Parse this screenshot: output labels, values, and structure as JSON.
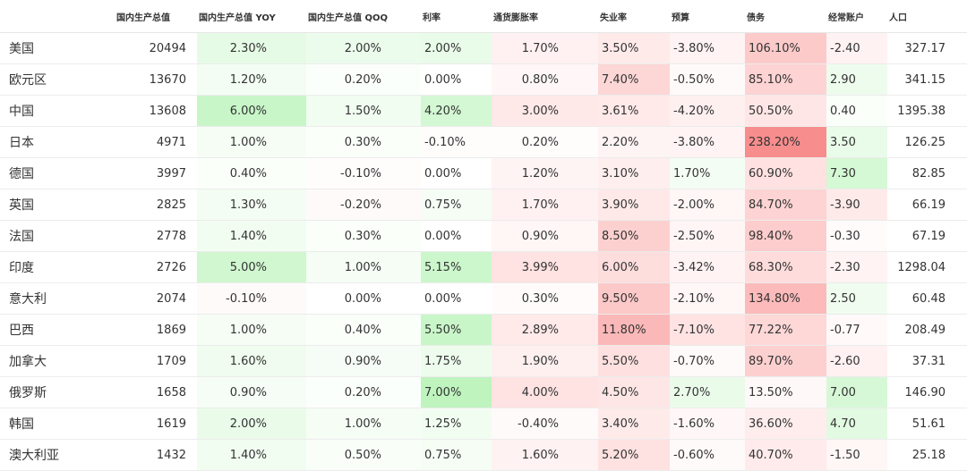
{
  "table": {
    "headers": [
      "",
      "国内生产总值",
      "国内生产总值 YOY",
      "国内生产总值 QOQ",
      "利率",
      "通货膨胀率",
      "失业率",
      "预算",
      "债务",
      "经常账户",
      "人口"
    ],
    "rows": [
      {
        "country": "美国",
        "cells": [
          {
            "text": "20494",
            "bg": ""
          },
          {
            "text": "2.30%",
            "bg": "#e6fbe6"
          },
          {
            "text": "2.00%",
            "bg": "#ecfcec"
          },
          {
            "text": "2.00%",
            "bg": "#e9fbe9"
          },
          {
            "text": "1.70%",
            "bg": "#fff1f1"
          },
          {
            "text": "3.50%",
            "bg": "#ffeaea"
          },
          {
            "text": "-3.80%",
            "bg": "#fff3f3"
          },
          {
            "text": "106.10%",
            "bg": "#fdcaca"
          },
          {
            "text": "-2.40",
            "bg": "#fff2f2"
          },
          {
            "text": "327.17",
            "bg": ""
          }
        ]
      },
      {
        "country": "欧元区",
        "cells": [
          {
            "text": "13670",
            "bg": ""
          },
          {
            "text": "1.20%",
            "bg": "#f3fdf3"
          },
          {
            "text": "0.20%",
            "bg": "#fbfffb"
          },
          {
            "text": "0.00%",
            "bg": ""
          },
          {
            "text": "0.80%",
            "bg": "#fff7f7"
          },
          {
            "text": "7.40%",
            "bg": "#fdd6d6"
          },
          {
            "text": "-0.50%",
            "bg": "#fffafa"
          },
          {
            "text": "85.10%",
            "bg": "#fdd3d3"
          },
          {
            "text": "2.90",
            "bg": "#eefcee"
          },
          {
            "text": "341.15",
            "bg": ""
          }
        ]
      },
      {
        "country": "中国",
        "cells": [
          {
            "text": "13608",
            "bg": ""
          },
          {
            "text": "6.00%",
            "bg": "#c8f6c8"
          },
          {
            "text": "1.50%",
            "bg": "#f1fdf1"
          },
          {
            "text": "4.20%",
            "bg": "#d3f8d3"
          },
          {
            "text": "3.00%",
            "bg": "#ffe8e8"
          },
          {
            "text": "3.61%",
            "bg": "#ffe9e9"
          },
          {
            "text": "-4.20%",
            "bg": "#fff0f0"
          },
          {
            "text": "50.50%",
            "bg": "#ffe6e6"
          },
          {
            "text": "0.40",
            "bg": "#fafffa"
          },
          {
            "text": "1395.38",
            "bg": ""
          }
        ]
      },
      {
        "country": "日本",
        "cells": [
          {
            "text": "4971",
            "bg": ""
          },
          {
            "text": "1.00%",
            "bg": "#f5fdf5"
          },
          {
            "text": "0.30%",
            "bg": "#fafffa"
          },
          {
            "text": "-0.10%",
            "bg": "#fffcfc"
          },
          {
            "text": "0.20%",
            "bg": "#fffcfc"
          },
          {
            "text": "2.20%",
            "bg": "#fff4f4"
          },
          {
            "text": "-3.80%",
            "bg": "#fff3f3"
          },
          {
            "text": "238.20%",
            "bg": "#f88d8d"
          },
          {
            "text": "3.50",
            "bg": "#e9fbe9"
          },
          {
            "text": "126.25",
            "bg": ""
          }
        ]
      },
      {
        "country": "德国",
        "cells": [
          {
            "text": "3997",
            "bg": ""
          },
          {
            "text": "0.40%",
            "bg": "#fafffa"
          },
          {
            "text": "-0.10%",
            "bg": "#fffcfc"
          },
          {
            "text": "0.00%",
            "bg": ""
          },
          {
            "text": "1.20%",
            "bg": "#fff4f4"
          },
          {
            "text": "3.10%",
            "bg": "#ffeeee"
          },
          {
            "text": "1.70%",
            "bg": "#f4fdf4"
          },
          {
            "text": "60.90%",
            "bg": "#ffe1e1"
          },
          {
            "text": "7.30",
            "bg": "#d5f8d5"
          },
          {
            "text": "82.85",
            "bg": ""
          }
        ]
      },
      {
        "country": "英国",
        "cells": [
          {
            "text": "2825",
            "bg": ""
          },
          {
            "text": "1.30%",
            "bg": "#f3fdf3"
          },
          {
            "text": "-0.20%",
            "bg": "#fffafa"
          },
          {
            "text": "0.75%",
            "bg": "#f5fdf5"
          },
          {
            "text": "1.70%",
            "bg": "#fff1f1"
          },
          {
            "text": "3.90%",
            "bg": "#ffe8e8"
          },
          {
            "text": "-2.00%",
            "bg": "#fff6f6"
          },
          {
            "text": "84.70%",
            "bg": "#fdd3d3"
          },
          {
            "text": "-3.90",
            "bg": "#ffeaea"
          },
          {
            "text": "66.19",
            "bg": ""
          }
        ]
      },
      {
        "country": "法国",
        "cells": [
          {
            "text": "2778",
            "bg": ""
          },
          {
            "text": "1.40%",
            "bg": "#f2fdf2"
          },
          {
            "text": "0.30%",
            "bg": "#fafffa"
          },
          {
            "text": "0.00%",
            "bg": ""
          },
          {
            "text": "0.90%",
            "bg": "#fff6f6"
          },
          {
            "text": "8.50%",
            "bg": "#fdd0d0"
          },
          {
            "text": "-2.50%",
            "bg": "#fff5f5"
          },
          {
            "text": "98.40%",
            "bg": "#fdcccc"
          },
          {
            "text": "-0.30",
            "bg": "#fffbfb"
          },
          {
            "text": "67.19",
            "bg": ""
          }
        ]
      },
      {
        "country": "印度",
        "cells": [
          {
            "text": "2726",
            "bg": ""
          },
          {
            "text": "5.00%",
            "bg": "#d0f7d0"
          },
          {
            "text": "1.00%",
            "bg": "#f5fdf5"
          },
          {
            "text": "5.15%",
            "bg": "#ccf7cc"
          },
          {
            "text": "3.99%",
            "bg": "#ffe2e2"
          },
          {
            "text": "6.00%",
            "bg": "#fedddd"
          },
          {
            "text": "-3.42%",
            "bg": "#fff3f3"
          },
          {
            "text": "68.30%",
            "bg": "#ffdcdc"
          },
          {
            "text": "-2.30",
            "bg": "#fff3f3"
          },
          {
            "text": "1298.04",
            "bg": ""
          }
        ]
      },
      {
        "country": "意大利",
        "cells": [
          {
            "text": "2074",
            "bg": ""
          },
          {
            "text": "-0.10%",
            "bg": "#fffafa"
          },
          {
            "text": "0.00%",
            "bg": ""
          },
          {
            "text": "0.00%",
            "bg": ""
          },
          {
            "text": "0.30%",
            "bg": "#fffbfb"
          },
          {
            "text": "9.50%",
            "bg": "#fcc8c8"
          },
          {
            "text": "-2.10%",
            "bg": "#fff6f6"
          },
          {
            "text": "134.80%",
            "bg": "#fcbaba"
          },
          {
            "text": "2.50",
            "bg": "#f0fcf0"
          },
          {
            "text": "60.48",
            "bg": ""
          }
        ]
      },
      {
        "country": "巴西",
        "cells": [
          {
            "text": "1869",
            "bg": ""
          },
          {
            "text": "1.00%",
            "bg": "#f5fdf5"
          },
          {
            "text": "0.40%",
            "bg": "#fafffa"
          },
          {
            "text": "5.50%",
            "bg": "#c9f6c9"
          },
          {
            "text": "2.89%",
            "bg": "#ffe9e9"
          },
          {
            "text": "11.80%",
            "bg": "#fab8b8"
          },
          {
            "text": "-7.10%",
            "bg": "#ffe3e3"
          },
          {
            "text": "77.22%",
            "bg": "#fed7d7"
          },
          {
            "text": "-0.77",
            "bg": "#fff9f9"
          },
          {
            "text": "208.49",
            "bg": ""
          }
        ]
      },
      {
        "country": "加拿大",
        "cells": [
          {
            "text": "1709",
            "bg": ""
          },
          {
            "text": "1.60%",
            "bg": "#effcef"
          },
          {
            "text": "0.90%",
            "bg": "#f6fdf6"
          },
          {
            "text": "1.75%",
            "bg": "#eefcee"
          },
          {
            "text": "1.90%",
            "bg": "#fff0f0"
          },
          {
            "text": "5.50%",
            "bg": "#fee0e0"
          },
          {
            "text": "-0.70%",
            "bg": "#fffafa"
          },
          {
            "text": "89.70%",
            "bg": "#fdd0d0"
          },
          {
            "text": "-2.60",
            "bg": "#fff1f1"
          },
          {
            "text": "37.31",
            "bg": ""
          }
        ]
      },
      {
        "country": "俄罗斯",
        "cells": [
          {
            "text": "1658",
            "bg": ""
          },
          {
            "text": "0.90%",
            "bg": "#f6fdf6"
          },
          {
            "text": "0.20%",
            "bg": "#fbfffb"
          },
          {
            "text": "7.00%",
            "bg": "#bff4bf"
          },
          {
            "text": "4.00%",
            "bg": "#ffe2e2"
          },
          {
            "text": "4.50%",
            "bg": "#ffe6e6"
          },
          {
            "text": "2.70%",
            "bg": "#eafbea"
          },
          {
            "text": "13.50%",
            "bg": "#fff8f8"
          },
          {
            "text": "7.00",
            "bg": "#d7f8d7"
          },
          {
            "text": "146.90",
            "bg": ""
          }
        ]
      },
      {
        "country": "韩国",
        "cells": [
          {
            "text": "1619",
            "bg": ""
          },
          {
            "text": "2.00%",
            "bg": "#eafbea"
          },
          {
            "text": "1.00%",
            "bg": "#f5fdf5"
          },
          {
            "text": "1.25%",
            "bg": "#f2fdf2"
          },
          {
            "text": "-0.40%",
            "bg": "#fffafa"
          },
          {
            "text": "3.40%",
            "bg": "#ffeaea"
          },
          {
            "text": "-1.60%",
            "bg": "#fff7f7"
          },
          {
            "text": "36.60%",
            "bg": "#ffeded"
          },
          {
            "text": "4.70",
            "bg": "#e2fae2"
          },
          {
            "text": "51.61",
            "bg": ""
          }
        ]
      },
      {
        "country": "澳大利亚",
        "cells": [
          {
            "text": "1432",
            "bg": ""
          },
          {
            "text": "1.40%",
            "bg": "#f2fdf2"
          },
          {
            "text": "0.50%",
            "bg": "#f9fef9"
          },
          {
            "text": "0.75%",
            "bg": "#f5fdf5"
          },
          {
            "text": "1.60%",
            "bg": "#fff2f2"
          },
          {
            "text": "5.20%",
            "bg": "#fee1e1"
          },
          {
            "text": "-0.60%",
            "bg": "#fffafa"
          },
          {
            "text": "40.70%",
            "bg": "#ffebeb"
          },
          {
            "text": "-1.50",
            "bg": "#fff6f6"
          },
          {
            "text": "25.18",
            "bg": ""
          }
        ]
      }
    ]
  }
}
